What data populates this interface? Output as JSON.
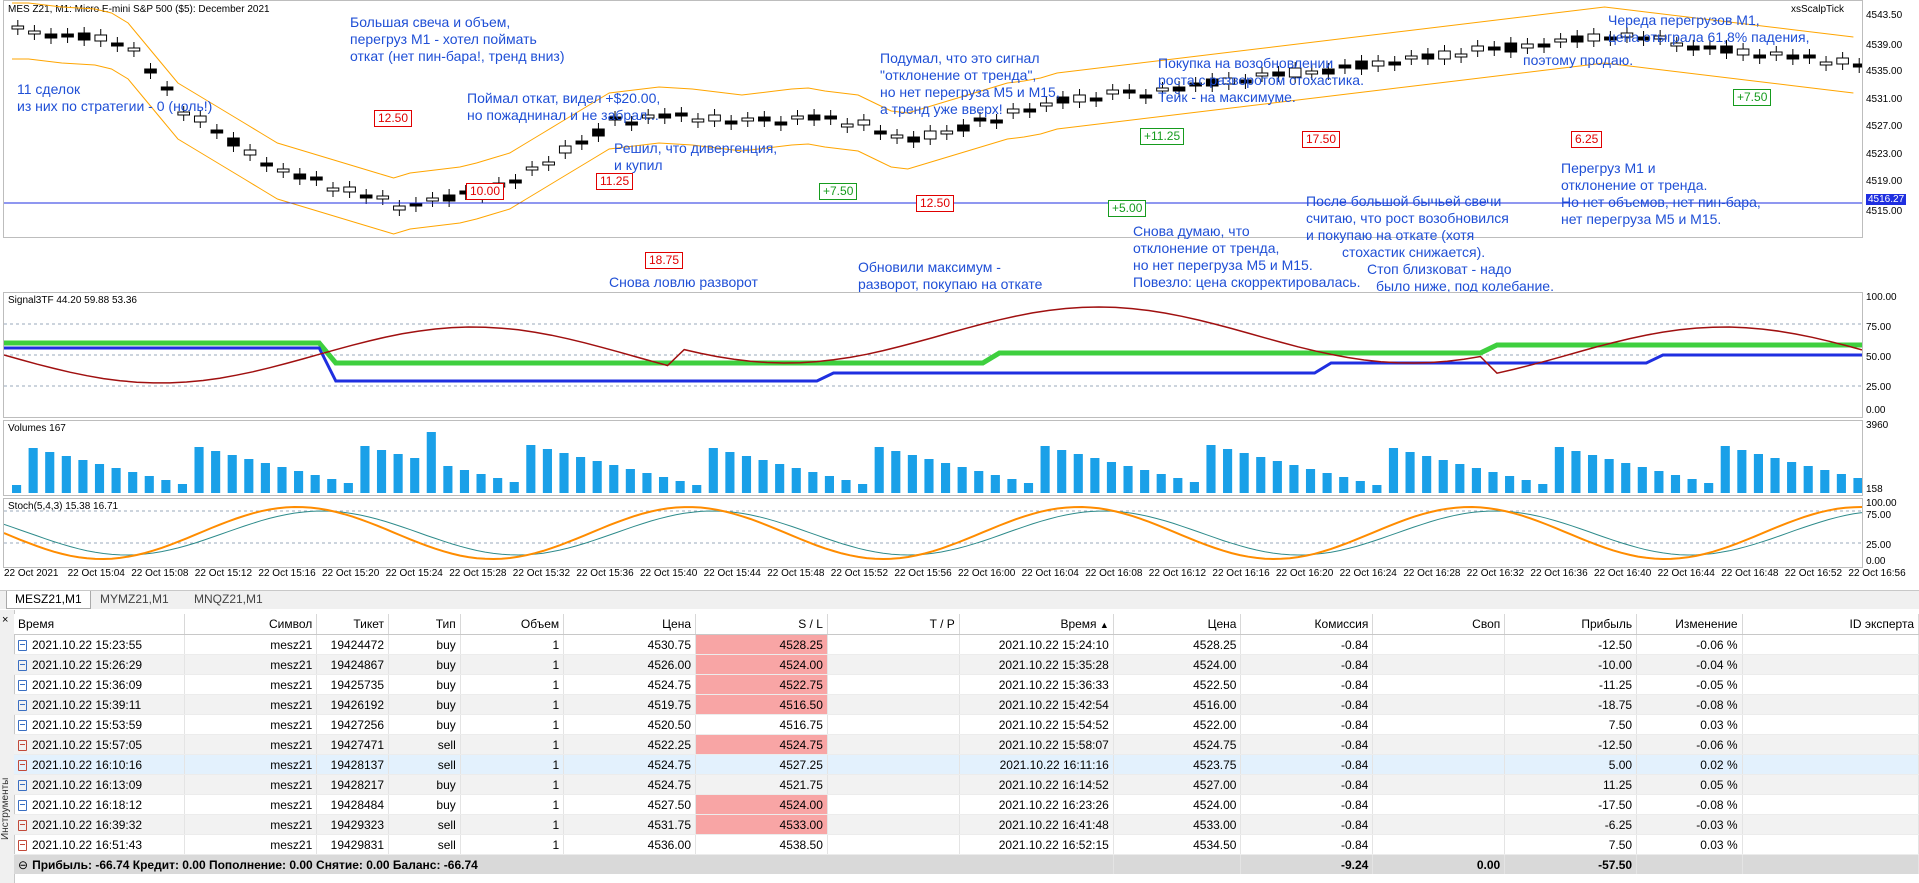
{
  "window": {
    "symbol_title": "MES Z21, M1: Micro E-mini S&P 500 ($5): December 2021",
    "indicator_name": "xsScalpTick"
  },
  "colors": {
    "candle": "#000000",
    "band": "#ffa500",
    "sig_red": "#a01010",
    "sig_green": "#3ecf3e",
    "sig_blue": "#1f2fe0",
    "volume": "#1aa0e8",
    "stoch_main": "#ff8c00",
    "stoch_signal": "#2e8b8b",
    "annotation": "#1f4fd6",
    "loss_tag": "#e00000",
    "profit_tag": "#169b1e",
    "sl_hit": "#f8a5a5"
  },
  "price_pane": {
    "scale_labels": [
      "4543.50",
      "4539.00",
      "4535.00",
      "4531.00",
      "4527.00",
      "4523.00",
      "4519.00",
      "4516.27",
      "4515.00"
    ],
    "current_price": "4516.27",
    "annotations": [
      "Большая свеча и объем,",
      "перегруз М1 - хотел поймать",
      "откат (нет пин-бара!, тренд вниз)",
      "11 сделок",
      "из них по стратегии - 0 (ноль!)",
      "Поймал откат, видел +$20.00,",
      "но пожаднинал и не забрал...",
      "Решил, что дивергенция,",
      "и купил",
      "Подумал, что это сигнал",
      "\"отклонение от тренда\",",
      "но нет перегруза М5 и М15,",
      "а тренд уже вверх!",
      "Покупка на возобновлении",
      "роста с разворотом стохастика.",
      "Тейк - на максимуме.",
      "Череда перегрузов М1,",
      "цена отыграла 61,8% падения,",
      "поэтому продаю.",
      "Снова ловлю разворот",
      "Обновили максимум -",
      "разворот, покупаю на откате",
      "Снова думаю, что",
      "отклонение от тренда,",
      "но нет перегруза М5 и М15.",
      "Повезло: цена скорректировалась.",
      "После большой бычьей свечи",
      "считаю, что рост возобновился",
      "и покупаю на откате (хотя",
      "стохастик снижается).",
      "Стоп близковат - надо",
      "было ниже, под колебание.",
      "Перегруз М1 и",
      "отклонение от тренда.",
      "Но нет объемов, нет пин-бара,",
      "нет перегруза М5 и М15."
    ],
    "trade_tags": [
      "12.50",
      "10.00",
      "11.25",
      "18.75",
      "+7.50",
      "12.50",
      "+11.25",
      "+5.00",
      "17.50",
      "6.25",
      "+7.50"
    ]
  },
  "signal_pane": {
    "label": "Signal3TF 44.20 59.88 53.36",
    "scale_labels": [
      "100.00",
      "75.00",
      "50.00",
      "25.00",
      "0.00"
    ]
  },
  "volume_pane": {
    "label": "Volumes 167",
    "scale_labels": [
      "3960",
      "158"
    ]
  },
  "stoch_pane": {
    "label": "Stoch(5,4,3) 15.38 16.71",
    "scale_labels": [
      "100.00",
      "75.00",
      "25.00",
      "0.00"
    ]
  },
  "time_axis": [
    "22 Oct 2021",
    "22 Oct 15:04",
    "22 Oct 15:08",
    "22 Oct 15:12",
    "22 Oct 15:16",
    "22 Oct 15:20",
    "22 Oct 15:24",
    "22 Oct 15:28",
    "22 Oct 15:32",
    "22 Oct 15:36",
    "22 Oct 15:40",
    "22 Oct 15:44",
    "22 Oct 15:48",
    "22 Oct 15:52",
    "22 Oct 15:56",
    "22 Oct 16:00",
    "22 Oct 16:04",
    "22 Oct 16:08",
    "22 Oct 16:12",
    "22 Oct 16:16",
    "22 Oct 16:20",
    "22 Oct 16:24",
    "22 Oct 16:28",
    "22 Oct 16:32",
    "22 Oct 16:36",
    "22 Oct 16:40",
    "22 Oct 16:44",
    "22 Oct 16:48",
    "22 Oct 16:52",
    "22 Oct 16:56"
  ],
  "chart_tabs": [
    "MESZ21,M1",
    "MYMZ21,M1",
    "MNQZ21,M1"
  ],
  "toolbox": {
    "side_label": "Инструменты"
  },
  "table": {
    "columns": [
      "Время",
      "Символ",
      "Тикет",
      "Тип",
      "Объем",
      "Цена",
      "S / L",
      "T / P",
      "Время",
      "Цена",
      "Комиссия",
      "Своп",
      "Прибыль",
      "Изменение",
      "ID эксперта"
    ],
    "sort_indicator": "▲",
    "rows": [
      [
        "2021.10.22 15:23:55",
        "mesz21",
        "19424472",
        "buy",
        "1",
        "4530.75",
        "4528.25",
        "",
        "2021.10.22 15:24:10",
        "4528.25",
        "-0.84",
        "",
        "-12.50",
        "-0.06 %",
        ""
      ],
      [
        "2021.10.22 15:26:29",
        "mesz21",
        "19424867",
        "buy",
        "1",
        "4526.00",
        "4524.00",
        "",
        "2021.10.22 15:35:28",
        "4524.00",
        "-0.84",
        "",
        "-10.00",
        "-0.04 %",
        ""
      ],
      [
        "2021.10.22 15:36:09",
        "mesz21",
        "19425735",
        "buy",
        "1",
        "4524.75",
        "4522.75",
        "",
        "2021.10.22 15:36:33",
        "4522.50",
        "-0.84",
        "",
        "-11.25",
        "-0.05 %",
        ""
      ],
      [
        "2021.10.22 15:39:11",
        "mesz21",
        "19426192",
        "buy",
        "1",
        "4519.75",
        "4516.50",
        "",
        "2021.10.22 15:42:54",
        "4516.00",
        "-0.84",
        "",
        "-18.75",
        "-0.08 %",
        ""
      ],
      [
        "2021.10.22 15:53:59",
        "mesz21",
        "19427256",
        "buy",
        "1",
        "4520.50",
        "4516.75",
        "",
        "2021.10.22 15:54:52",
        "4522.00",
        "-0.84",
        "",
        "7.50",
        "0.03 %",
        ""
      ],
      [
        "2021.10.22 15:57:05",
        "mesz21",
        "19427471",
        "sell",
        "1",
        "4522.25",
        "4524.75",
        "",
        "2021.10.22 15:58:07",
        "4524.75",
        "-0.84",
        "",
        "-12.50",
        "-0.06 %",
        ""
      ],
      [
        "2021.10.22 16:10:16",
        "mesz21",
        "19428137",
        "sell",
        "1",
        "4524.75",
        "4527.25",
        "",
        "2021.10.22 16:11:16",
        "4523.75",
        "-0.84",
        "",
        "5.00",
        "0.02 %",
        ""
      ],
      [
        "2021.10.22 16:13:09",
        "mesz21",
        "19428217",
        "buy",
        "1",
        "4524.75",
        "4521.75",
        "",
        "2021.10.22 16:14:52",
        "4527.00",
        "-0.84",
        "",
        "11.25",
        "0.05 %",
        ""
      ],
      [
        "2021.10.22 16:18:12",
        "mesz21",
        "19428484",
        "buy",
        "1",
        "4527.50",
        "4524.00",
        "",
        "2021.10.22 16:23:26",
        "4524.00",
        "-0.84",
        "",
        "-17.50",
        "-0.08 %",
        ""
      ],
      [
        "2021.10.22 16:39:32",
        "mesz21",
        "19429323",
        "sell",
        "1",
        "4531.75",
        "4533.00",
        "",
        "2021.10.22 16:41:48",
        "4533.00",
        "-0.84",
        "",
        "-6.25",
        "-0.03 %",
        ""
      ],
      [
        "2021.10.22 16:51:43",
        "mesz21",
        "19429831",
        "sell",
        "1",
        "4536.00",
        "4538.50",
        "",
        "2021.10.22 16:52:15",
        "4534.50",
        "-0.84",
        "",
        "7.50",
        "0.03 %",
        ""
      ]
    ],
    "sl_hit_rows": [
      0,
      1,
      2,
      3,
      5,
      8,
      9
    ],
    "total": {
      "text": "Прибыль: -66.74  Кредит: 0.00  Пополнение: 0.00  Снятие: 0.00  Баланс: -66.74",
      "commission": "-9.24",
      "swap": "0.00",
      "profit": "-57.50"
    }
  }
}
